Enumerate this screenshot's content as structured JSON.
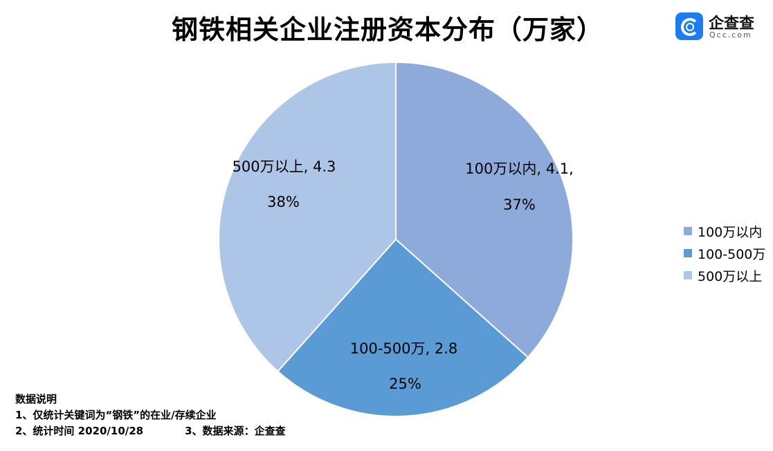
{
  "title": "钢铁相关企业注册资本分布（万家）",
  "logo": {
    "name": "企查查",
    "domain": "Qcc.com"
  },
  "chart_data": {
    "type": "pie",
    "title": "钢铁相关企业注册资本分布（万家）",
    "slices": [
      {
        "label": "100万以内",
        "value": 4.1,
        "percent": "37%",
        "color": "#8eaadb",
        "value_text": "4.1,"
      },
      {
        "label": "100-500万",
        "value": 2.8,
        "percent": "25%",
        "color": "#5b9bd5",
        "value_text": "2.8"
      },
      {
        "label": "500万以上",
        "value": 4.3,
        "percent": "38%",
        "color": "#adc5e7",
        "value_text": "4.3"
      }
    ],
    "legend_position": "right"
  },
  "notes": {
    "heading": "数据说明",
    "line1": "1、仅统计关键词为“钢铁”的在业/存续企业",
    "line2a": "2、统计时间  2020/10/28",
    "line2b": "3、数据来源：企查查"
  }
}
